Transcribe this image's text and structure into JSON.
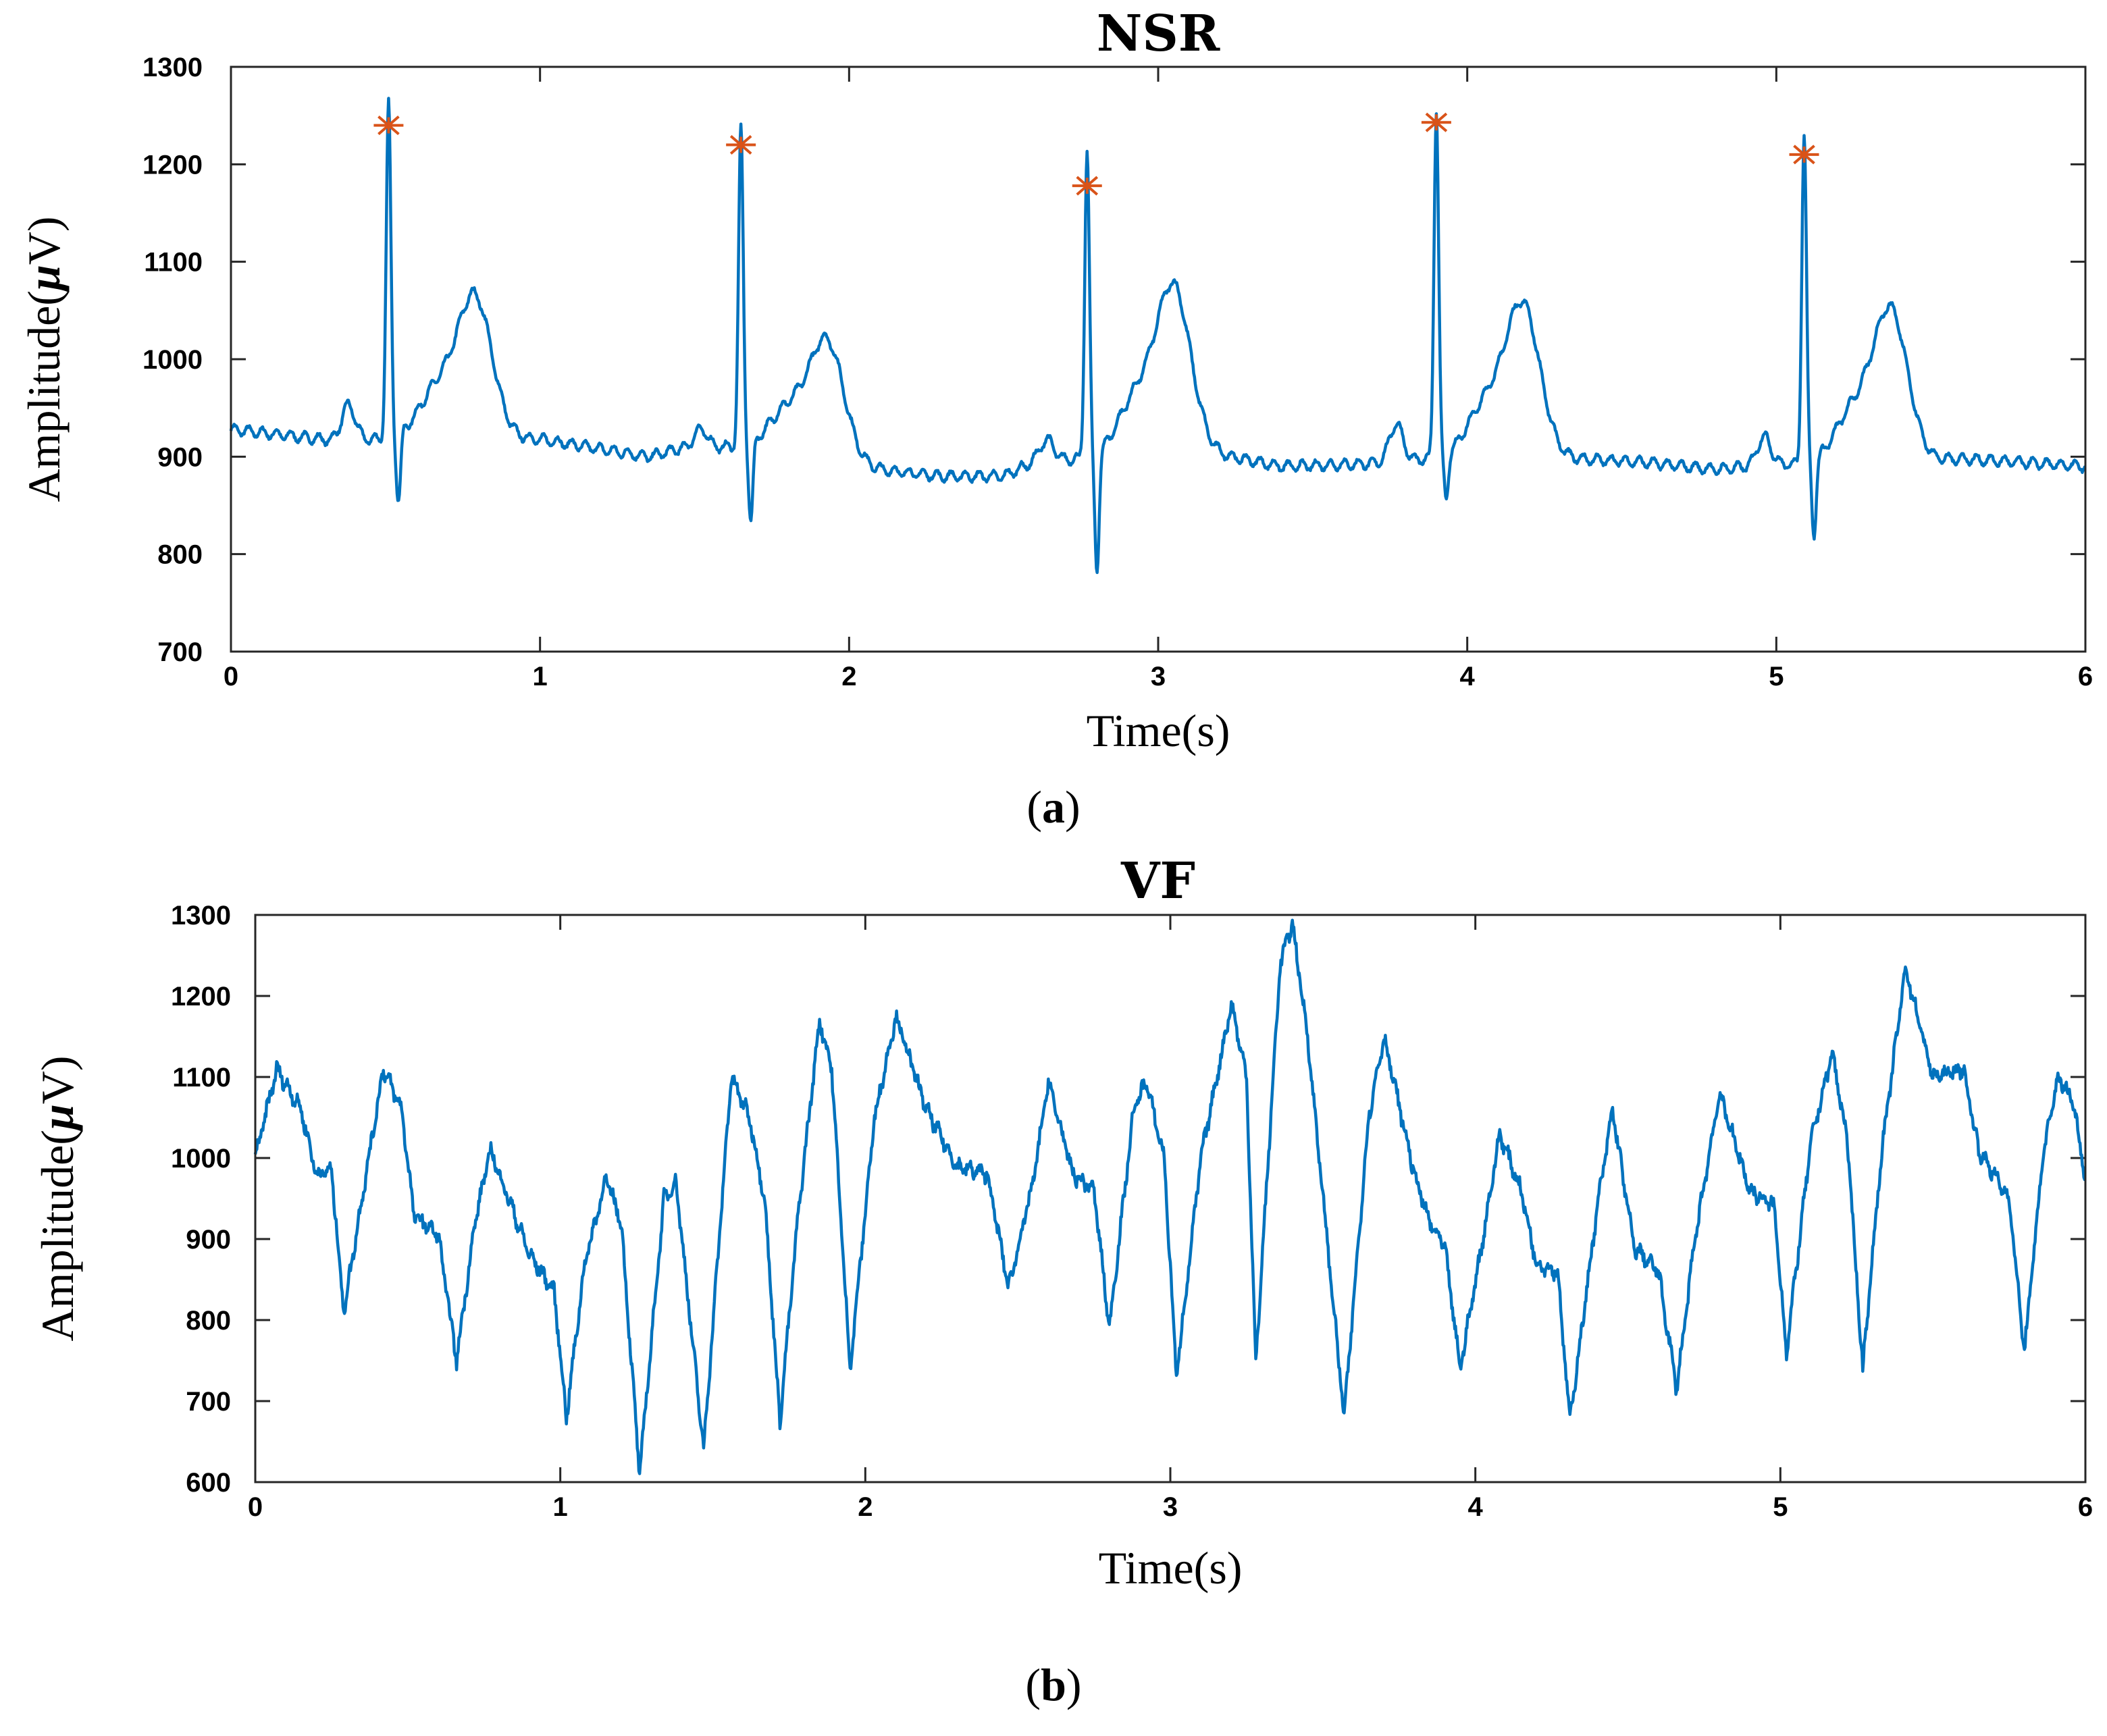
{
  "chart_data": [
    {
      "type": "line",
      "title": "NSR",
      "xlabel": "Time(s)",
      "ylabel_prefix": "Amplitude(",
      "ylabel_mu": "μ",
      "ylabel_suffix": "V)",
      "caption_open": "(",
      "caption_letter": "a",
      "caption_close": ")",
      "xlim": [
        0,
        6
      ],
      "ylim": [
        700,
        1300
      ],
      "xticks": [
        0,
        1,
        2,
        3,
        4,
        5,
        6
      ],
      "yticks": [
        700,
        800,
        900,
        1000,
        1100,
        1200,
        1300
      ],
      "line_color": "#0072BD",
      "marker_color": "#D95319",
      "baseline": [
        [
          0,
          928
        ],
        [
          0.35,
          916
        ],
        [
          0.6,
          920
        ],
        [
          1.0,
          918
        ],
        [
          1.35,
          900
        ],
        [
          1.45,
          908
        ],
        [
          1.75,
          912
        ],
        [
          2.0,
          890
        ],
        [
          2.3,
          880
        ],
        [
          2.5,
          880
        ],
        [
          2.6,
          895
        ],
        [
          2.85,
          900
        ],
        [
          3.15,
          905
        ],
        [
          3.4,
          890
        ],
        [
          3.7,
          893
        ],
        [
          3.9,
          898
        ],
        [
          4.2,
          900
        ],
        [
          4.55,
          895
        ],
        [
          4.8,
          887
        ],
        [
          5.0,
          892
        ],
        [
          5.3,
          893
        ],
        [
          5.6,
          898
        ],
        [
          6.0,
          890
        ]
      ],
      "beats": [
        {
          "t": 0.51,
          "peak": 1260,
          "trough": 850,
          "twave": 1060,
          "pwave": 955
        },
        {
          "t": 1.65,
          "peak": 1235,
          "trough": 830,
          "twave": 1030,
          "pwave": 930
        },
        {
          "t": 2.77,
          "peak": 1212,
          "trough": 778,
          "twave": 1065,
          "pwave": 920
        },
        {
          "t": 3.9,
          "peak": 1255,
          "trough": 852,
          "twave": 1050,
          "pwave": 937
        },
        {
          "t": 5.09,
          "peak": 1230,
          "trough": 815,
          "twave": 1045,
          "pwave": 922
        }
      ],
      "r_peak_markers": [
        {
          "t": 0.51,
          "v": 1240
        },
        {
          "t": 1.65,
          "v": 1220
        },
        {
          "t": 2.77,
          "v": 1178
        },
        {
          "t": 3.9,
          "v": 1243
        },
        {
          "t": 5.09,
          "v": 1210
        }
      ]
    },
    {
      "type": "line",
      "title": "VF",
      "xlabel": "Time(s)",
      "ylabel_prefix": "Amplitude(",
      "ylabel_mu": "μ",
      "ylabel_suffix": "V)",
      "caption_open": "(",
      "caption_letter": "b",
      "caption_close": ")",
      "xlim": [
        0,
        6
      ],
      "ylim": [
        600,
        1300
      ],
      "xticks": [
        0,
        1,
        2,
        3,
        4,
        5,
        6
      ],
      "yticks": [
        600,
        700,
        800,
        900,
        1000,
        1100,
        1200,
        1300
      ],
      "line_color": "#0072BD",
      "anchors": [
        [
          0,
          1000
        ],
        [
          0.07,
          1110
        ],
        [
          0.15,
          1060
        ],
        [
          0.2,
          980
        ],
        [
          0.25,
          985
        ],
        [
          0.29,
          810
        ],
        [
          0.35,
          950
        ],
        [
          0.42,
          1110
        ],
        [
          0.48,
          1060
        ],
        [
          0.52,
          930
        ],
        [
          0.6,
          905
        ],
        [
          0.66,
          750
        ],
        [
          0.72,
          920
        ],
        [
          0.77,
          1010
        ],
        [
          0.83,
          950
        ],
        [
          0.9,
          880
        ],
        [
          0.98,
          835
        ],
        [
          1.02,
          680
        ],
        [
          1.08,
          870
        ],
        [
          1.15,
          975
        ],
        [
          1.2,
          920
        ],
        [
          1.26,
          610
        ],
        [
          1.34,
          950
        ],
        [
          1.38,
          970
        ],
        [
          1.47,
          640
        ],
        [
          1.56,
          1100
        ],
        [
          1.62,
          1050
        ],
        [
          1.67,
          950
        ],
        [
          1.72,
          675
        ],
        [
          1.78,
          930
        ],
        [
          1.85,
          1170
        ],
        [
          1.89,
          1110
        ],
        [
          1.95,
          740
        ],
        [
          2.03,
          1050
        ],
        [
          2.1,
          1175
        ],
        [
          2.2,
          1060
        ],
        [
          2.3,
          990
        ],
        [
          2.4,
          980
        ],
        [
          2.47,
          840
        ],
        [
          2.55,
          970
        ],
        [
          2.6,
          1095
        ],
        [
          2.68,
          980
        ],
        [
          2.75,
          960
        ],
        [
          2.8,
          790
        ],
        [
          2.88,
          1060
        ],
        [
          2.92,
          1095
        ],
        [
          2.98,
          1000
        ],
        [
          3.02,
          730
        ],
        [
          3.1,
          1000
        ],
        [
          3.2,
          1190
        ],
        [
          3.25,
          1100
        ],
        [
          3.28,
          745
        ],
        [
          3.36,
          1240
        ],
        [
          3.4,
          1290
        ],
        [
          3.45,
          1150
        ],
        [
          3.57,
          680
        ],
        [
          3.65,
          1050
        ],
        [
          3.7,
          1150
        ],
        [
          3.8,
          980
        ],
        [
          3.85,
          920
        ],
        [
          3.9,
          890
        ],
        [
          3.95,
          740
        ],
        [
          4.02,
          890
        ],
        [
          4.08,
          1030
        ],
        [
          4.15,
          960
        ],
        [
          4.2,
          870
        ],
        [
          4.27,
          860
        ],
        [
          4.31,
          675
        ],
        [
          4.4,
          940
        ],
        [
          4.45,
          1060
        ],
        [
          4.52,
          890
        ],
        [
          4.6,
          860
        ],
        [
          4.66,
          715
        ],
        [
          4.72,
          900
        ],
        [
          4.8,
          1080
        ],
        [
          4.9,
          960
        ],
        [
          4.98,
          940
        ],
        [
          5.02,
          760
        ],
        [
          5.1,
          1020
        ],
        [
          5.17,
          1130
        ],
        [
          5.22,
          1020
        ],
        [
          5.27,
          740
        ],
        [
          5.33,
          1000
        ],
        [
          5.41,
          1235
        ],
        [
          5.5,
          1100
        ],
        [
          5.6,
          1110
        ],
        [
          5.65,
          1010
        ],
        [
          5.7,
          980
        ],
        [
          5.75,
          950
        ],
        [
          5.8,
          760
        ],
        [
          5.86,
          1000
        ],
        [
          5.91,
          1100
        ],
        [
          5.96,
          1070
        ],
        [
          6.0,
          975
        ]
      ]
    }
  ]
}
